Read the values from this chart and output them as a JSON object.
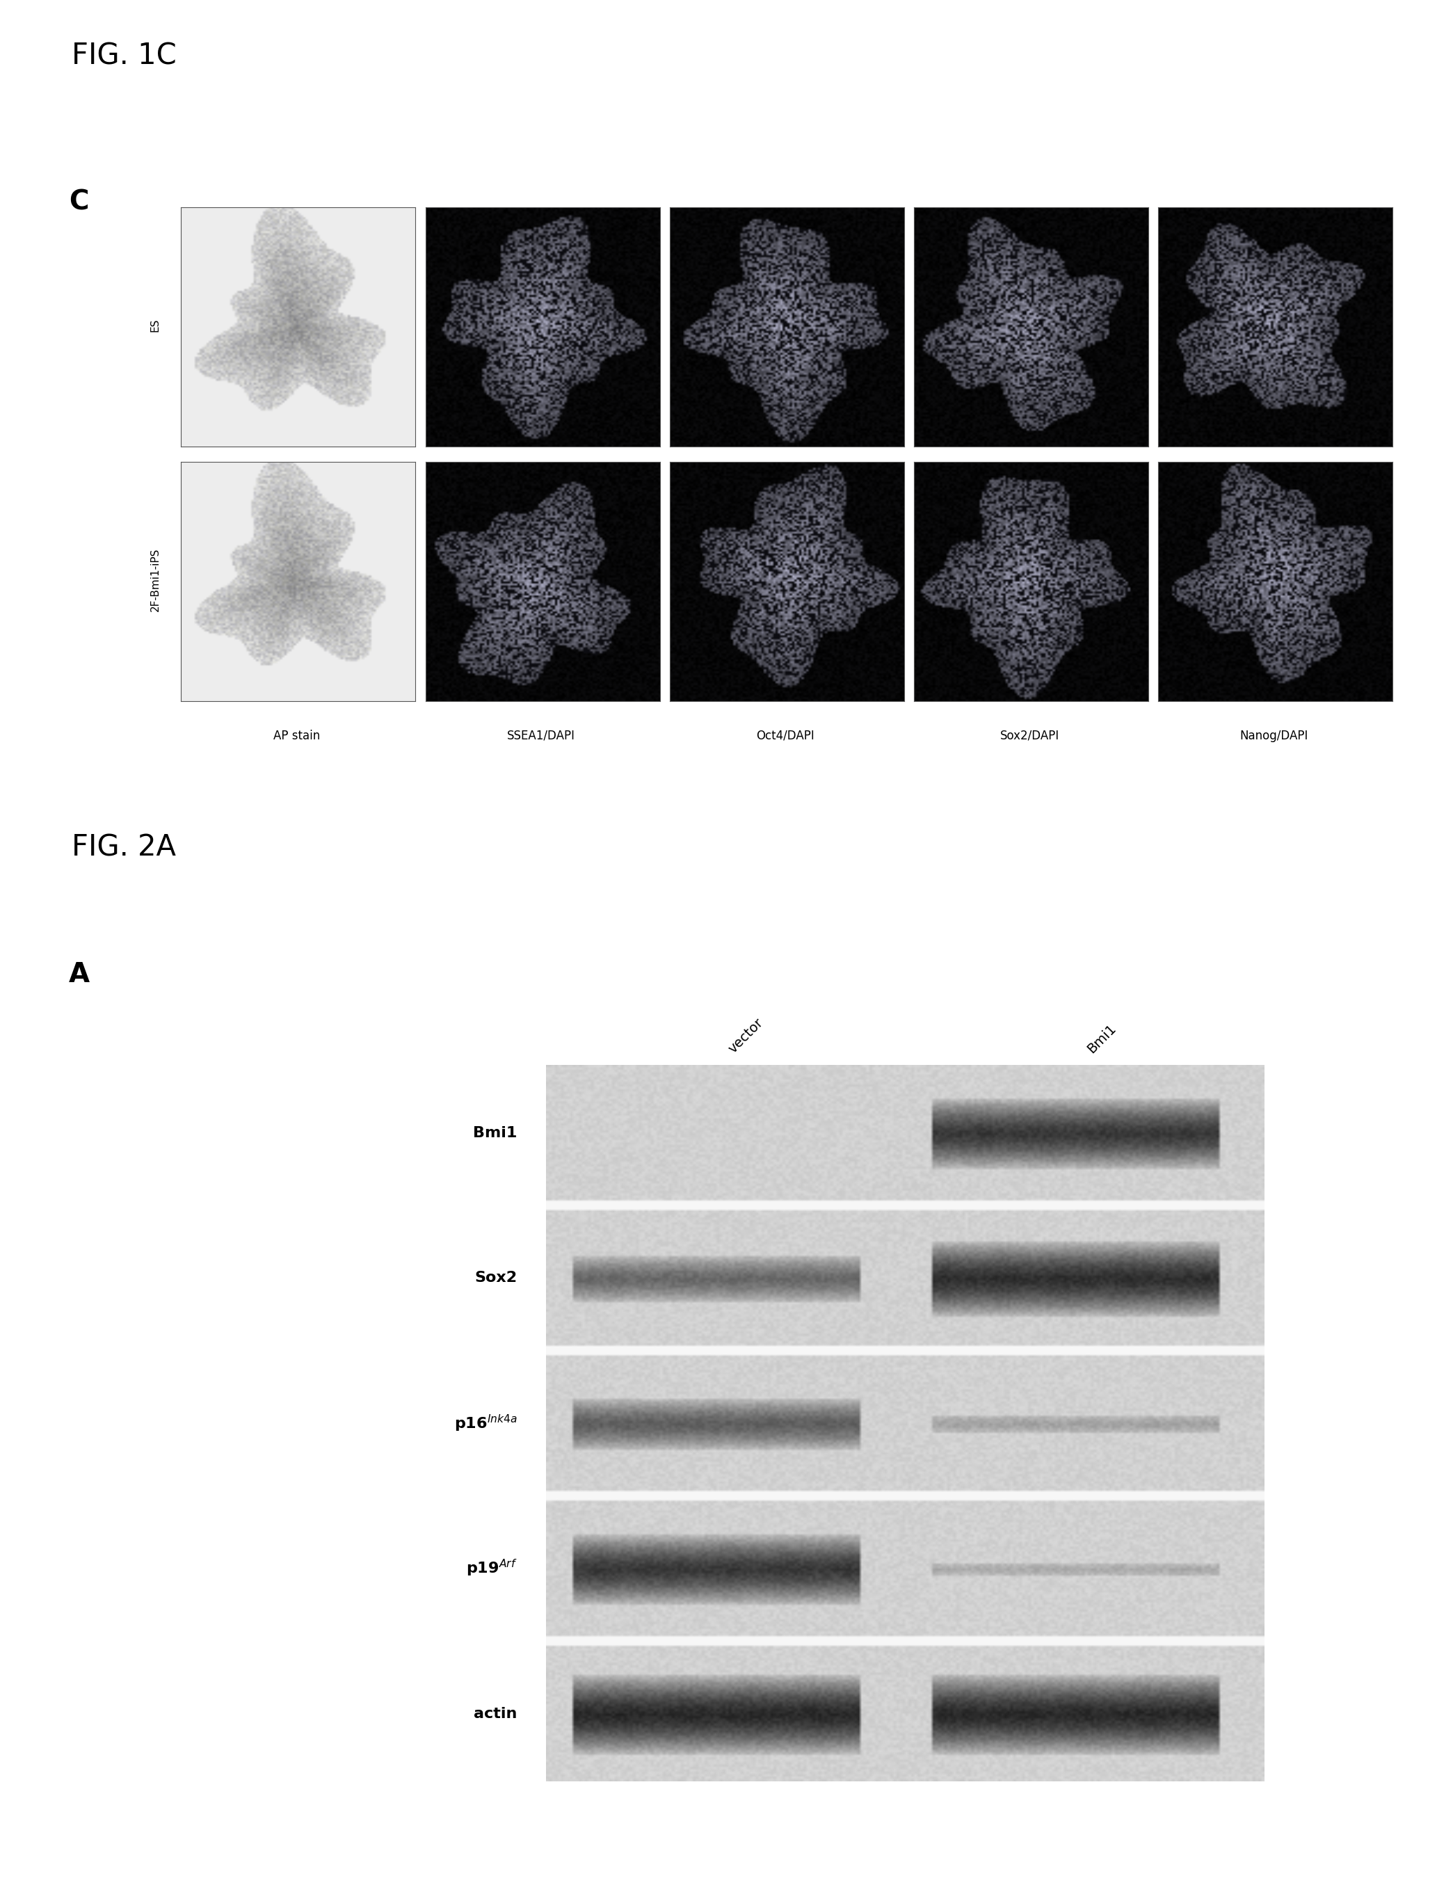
{
  "fig1c_title": "FIG. 1C",
  "fig2a_title": "FIG. 2A",
  "panel_c_label": "C",
  "panel_a_label": "A",
  "row_labels": [
    "ES",
    "2F-Bmi1-iPS"
  ],
  "col_labels": [
    "AP stain",
    "SSEA1/DAPI",
    "Oct4/DAPI",
    "Sox2/DAPI",
    "Nanog/DAPI"
  ],
  "western_row_labels_plain": [
    "Bmi1",
    "Sox2",
    "actin"
  ],
  "western_row_labels_super": [
    "p16",
    "p19"
  ],
  "western_col_labels": [
    "vector",
    "Bmi1"
  ],
  "bg_color": "#ffffff",
  "text_color": "#000000",
  "fig_title_fontsize": 30,
  "panel_label_fontsize": 28,
  "wb_label_fontsize": 16,
  "col_label_fontsize": 12
}
